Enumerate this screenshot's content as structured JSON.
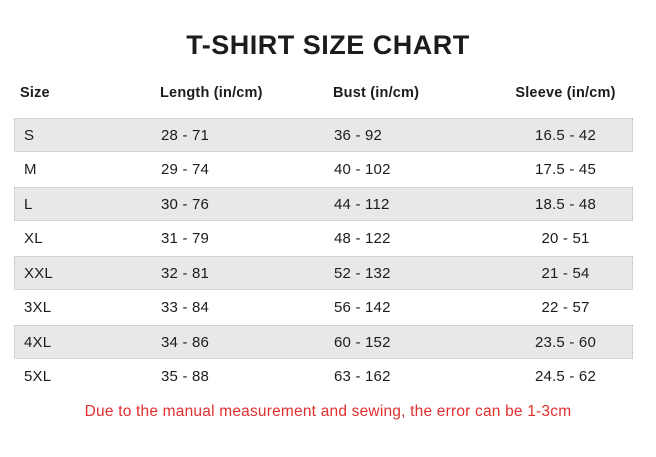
{
  "title": "T-SHIRT SIZE CHART",
  "chart_data": {
    "type": "table",
    "title": "T-SHIRT SIZE CHART",
    "columns": [
      "Size",
      "Length (in/cm)",
      "Bust (in/cm)",
      "Sleeve (in/cm)"
    ],
    "rows": [
      [
        "S",
        "28 - 71",
        "36 - 92",
        "16.5 - 42"
      ],
      [
        "M",
        "29 - 74",
        "40 - 102",
        "17.5 - 45"
      ],
      [
        "L",
        "30 - 76",
        "44 - 112",
        "18.5 - 48"
      ],
      [
        "XL",
        "31 - 79",
        "48 - 122",
        "20 - 51"
      ],
      [
        "XXL",
        "32 - 81",
        "52 - 132",
        "21 - 54"
      ],
      [
        "3XL",
        "33 - 84",
        "56 - 142",
        "22 - 57"
      ],
      [
        "4XL",
        "34 - 86",
        "60 - 152",
        "23.5 - 60"
      ],
      [
        "5XL",
        "35 - 88",
        "63 - 162",
        "24.5 - 62"
      ]
    ],
    "shaded_row_indices": [
      0,
      2,
      4,
      6
    ],
    "footnote": "Due to the manual measurement and sewing, the error can be 1-3cm"
  },
  "colors": {
    "row_shade": "#e8e8e8",
    "row_border": "#bdbdbd",
    "text": "#1c1c1c",
    "note_red": "#e02f2f",
    "background": "#ffffff"
  }
}
